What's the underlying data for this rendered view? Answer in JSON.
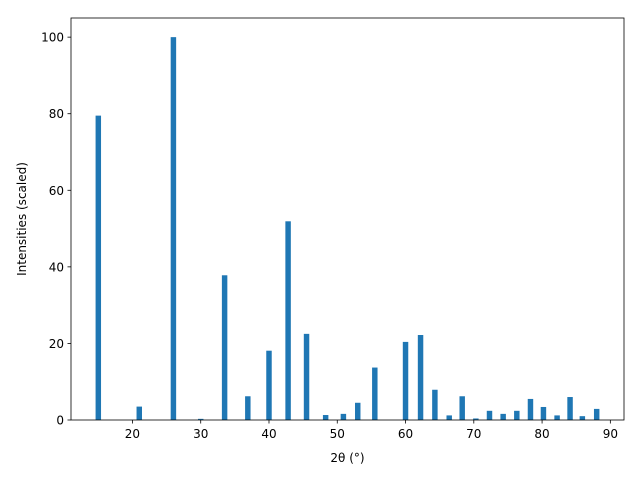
{
  "chart_data": {
    "type": "bar",
    "title": "",
    "xlabel": "2θ (°)",
    "ylabel": "Intensities (scaled)",
    "xlim": [
      11,
      92
    ],
    "ylim": [
      0,
      105
    ],
    "xticks": [
      20,
      30,
      40,
      50,
      60,
      70,
      80,
      90
    ],
    "yticks": [
      0,
      20,
      40,
      60,
      80,
      100
    ],
    "grid": false,
    "bar_color": "#1f77b4",
    "bar_width": 0.8,
    "series": [
      {
        "x": [
          15.0,
          21.0,
          26.0,
          30.0,
          33.5,
          36.9,
          40.0,
          42.8,
          45.5,
          48.3,
          50.9,
          53.0,
          55.5,
          60.0,
          62.2,
          64.3,
          66.4,
          68.3,
          70.3,
          72.3,
          74.3,
          76.3,
          78.3,
          80.2,
          82.2,
          84.1,
          85.9,
          88.0
        ],
        "values": [
          79.5,
          3.5,
          100.0,
          0.3,
          37.8,
          6.2,
          18.1,
          51.9,
          22.5,
          1.3,
          1.6,
          4.5,
          13.7,
          20.4,
          22.2,
          7.9,
          1.2,
          6.2,
          0.4,
          2.4,
          1.6,
          2.4,
          5.5,
          3.4,
          1.2,
          6.0,
          1.0,
          2.9
        ]
      }
    ]
  }
}
